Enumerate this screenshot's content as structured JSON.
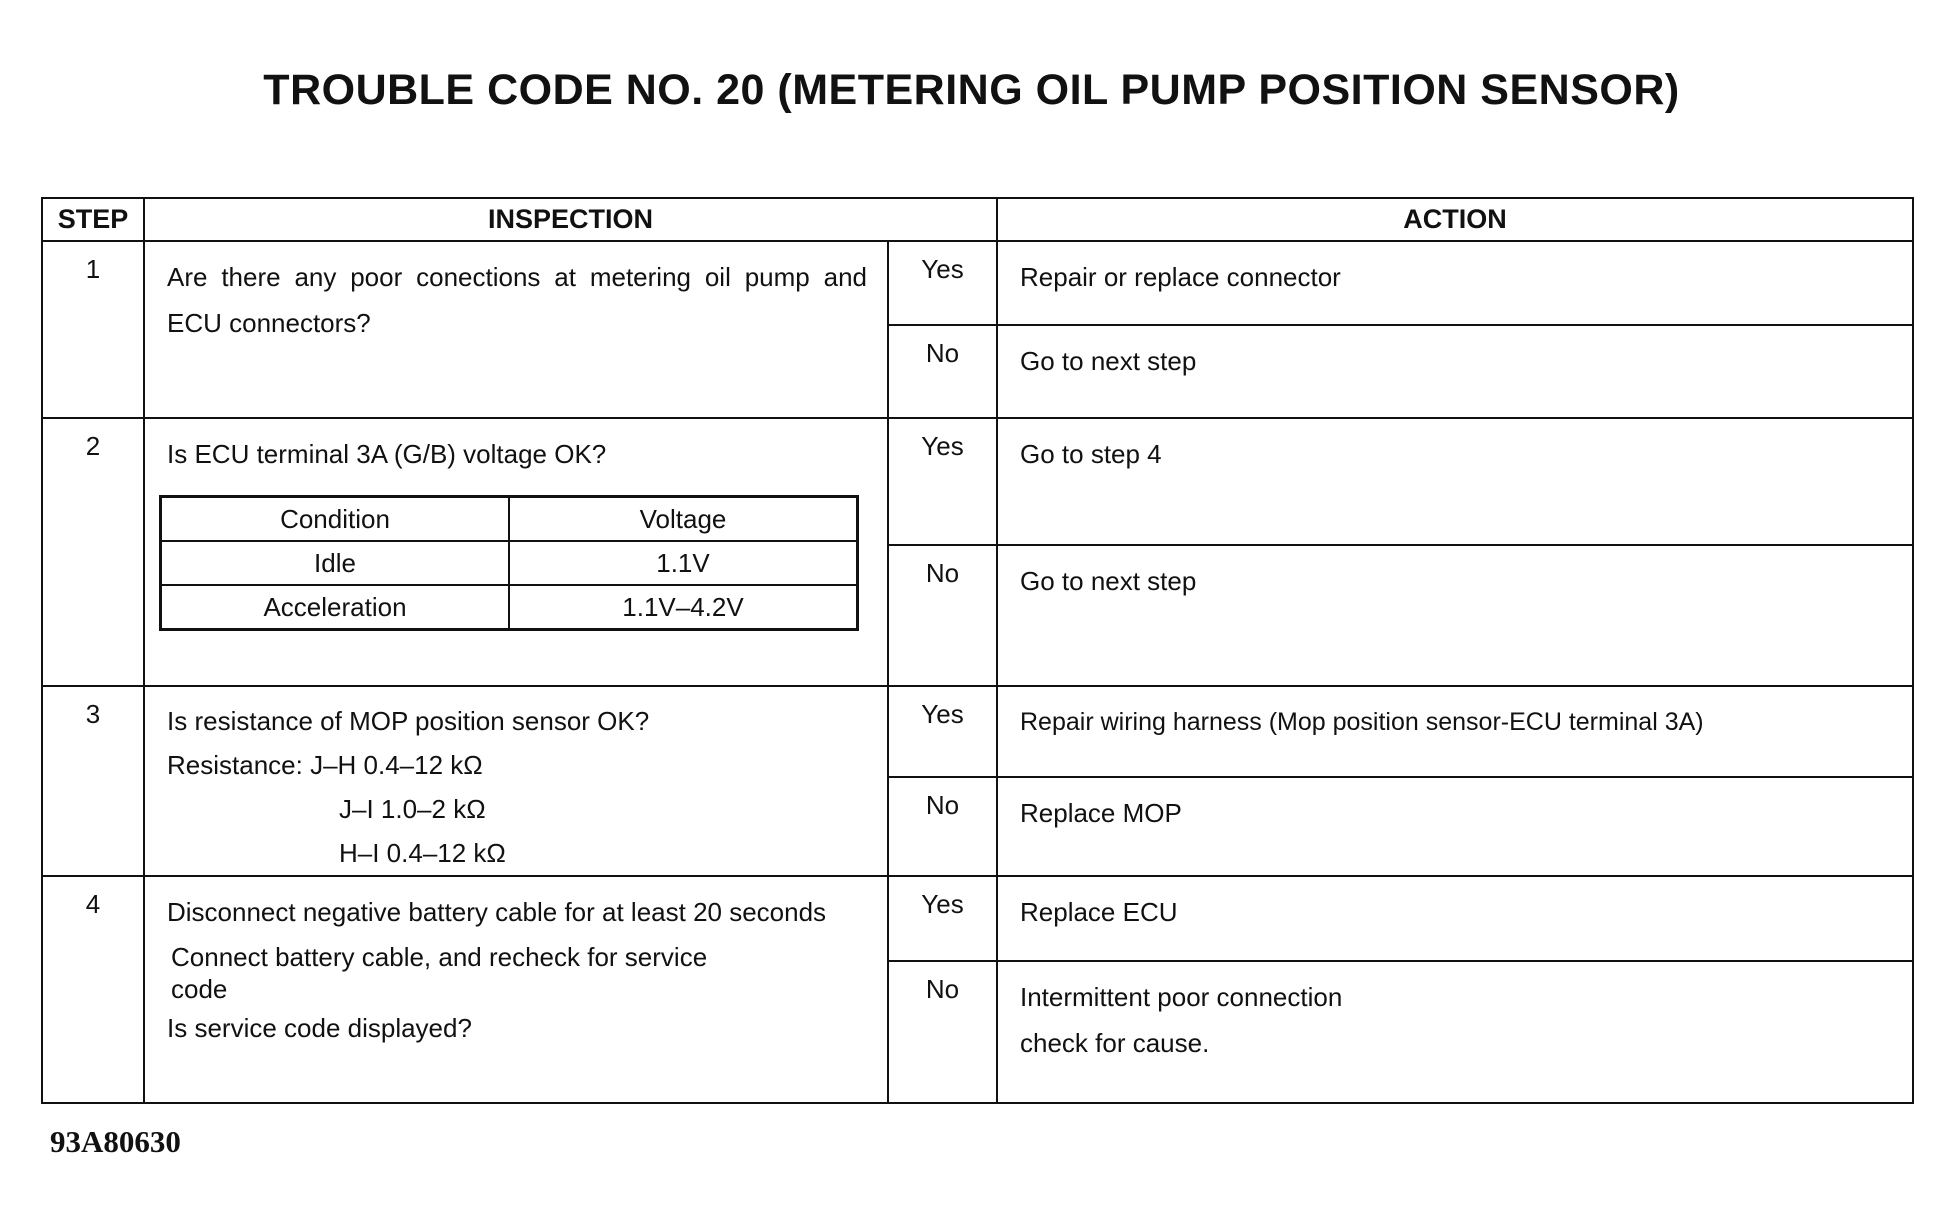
{
  "title": "TROUBLE CODE NO. 20 (METERING OIL PUMP POSITION SENSOR)",
  "headers": {
    "step": "STEP",
    "inspection": "INSPECTION",
    "action": "ACTION"
  },
  "yes_label": "Yes",
  "no_label": "No",
  "steps": [
    {
      "num": "1",
      "inspection": [
        "Are there any poor conections at metering oil pump and ECU connectors?"
      ],
      "yes": "Repair or replace connector",
      "no": "Go to next step"
    },
    {
      "num": "2",
      "inspection": [
        "Is ECU terminal 3A (G/B) voltage OK?"
      ],
      "yes": "Go to step 4",
      "no": "Go to next step",
      "table": {
        "headers": [
          "Condition",
          "Voltage"
        ],
        "rows": [
          [
            "Idle",
            "1.1V"
          ],
          [
            "Acceleration",
            "1.1V–4.2V"
          ]
        ]
      }
    },
    {
      "num": "3",
      "inspection": [
        "Is resistance of MOP position sensor OK?",
        "Resistance: J–H 0.4–12 kΩ",
        "J–I  1.0–2 kΩ",
        "H–I 0.4–12 kΩ"
      ],
      "yes": "Repair wiring harness (Mop position sensor-ECU terminal 3A)",
      "no": "Replace MOP"
    },
    {
      "num": "4",
      "inspection": [
        "Disconnect negative battery cable for at least 20 seconds",
        "Connect battery cable, and recheck for service code",
        "Is service code displayed?"
      ],
      "yes": "Replace ECU",
      "no": [
        "Intermittent poor connection",
        "check for cause."
      ]
    }
  ],
  "figure_code": "93A80630"
}
